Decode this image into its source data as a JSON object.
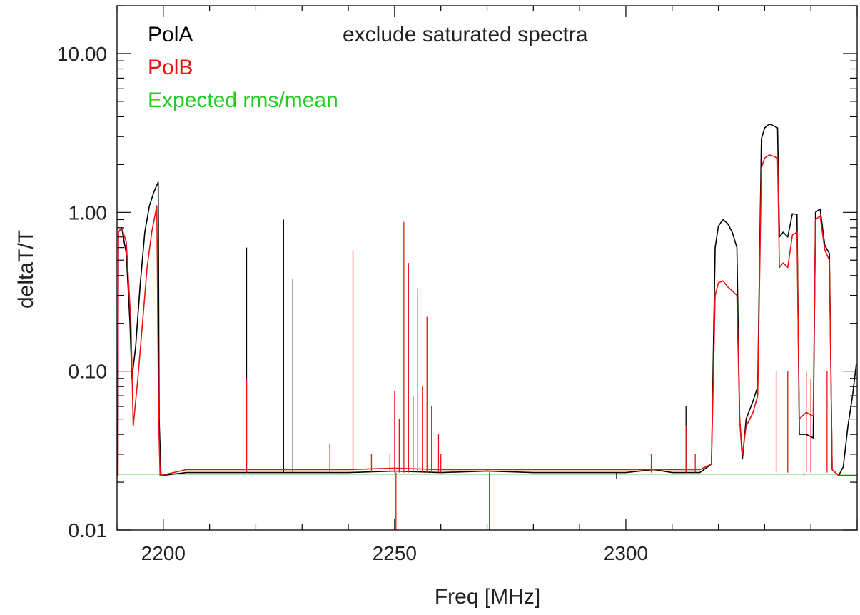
{
  "chart_data": {
    "type": "line",
    "title": "exclude saturated spectra",
    "xlabel": "Freq [MHz]",
    "ylabel": "deltaT/T",
    "xlim": [
      2190,
      2350
    ],
    "ylim": [
      0.01,
      20
    ],
    "yscale": "log",
    "grid": false,
    "legend_placement": "top-left",
    "x_ticks": [
      2200,
      2250,
      2300
    ],
    "x_tick_labels": [
      "2200",
      "2250",
      "2300"
    ],
    "y_ticks": [
      0.01,
      0.1,
      1,
      10
    ],
    "y_tick_labels": [
      "0.01",
      "0.10",
      "1.00",
      "10.00"
    ],
    "series": [
      {
        "name": "PolA",
        "color": "#000000",
        "points": [
          [
            2190.2,
            0.022
          ],
          [
            2190.3,
            0.75
          ],
          [
            2191,
            0.8
          ],
          [
            2192,
            0.55
          ],
          [
            2192.8,
            0.2
          ],
          [
            2193.2,
            0.09
          ],
          [
            2194,
            0.14
          ],
          [
            2195,
            0.35
          ],
          [
            2196,
            0.75
          ],
          [
            2197,
            1.1
          ],
          [
            2198,
            1.35
          ],
          [
            2198.9,
            1.55
          ],
          [
            2199.1,
            0.05
          ],
          [
            2199.5,
            0.022
          ],
          [
            2205,
            0.023
          ],
          [
            2210,
            0.023
          ],
          [
            2220,
            0.023
          ],
          [
            2230,
            0.023
          ],
          [
            2240,
            0.023
          ],
          [
            2250,
            0.0235
          ],
          [
            2260,
            0.023
          ],
          [
            2270,
            0.0235
          ],
          [
            2280,
            0.023
          ],
          [
            2290,
            0.023
          ],
          [
            2300,
            0.023
          ],
          [
            2306,
            0.024
          ],
          [
            2310,
            0.023
          ],
          [
            2316,
            0.023
          ],
          [
            2318.5,
            0.026
          ],
          [
            2319.3,
            0.6
          ],
          [
            2320,
            0.82
          ],
          [
            2321,
            0.9
          ],
          [
            2322,
            0.85
          ],
          [
            2323,
            0.75
          ],
          [
            2324,
            0.6
          ],
          [
            2324.6,
            0.05
          ],
          [
            2325.2,
            0.028
          ],
          [
            2326,
            0.05
          ],
          [
            2327.5,
            0.065
          ],
          [
            2328.5,
            0.08
          ],
          [
            2329.3,
            2.9
          ],
          [
            2330,
            3.4
          ],
          [
            2331,
            3.6
          ],
          [
            2332,
            3.5
          ],
          [
            2332.8,
            3.4
          ],
          [
            2333.2,
            0.7
          ],
          [
            2334,
            0.75
          ],
          [
            2335,
            0.7
          ],
          [
            2336,
            0.98
          ],
          [
            2337,
            0.97
          ],
          [
            2337.5,
            0.04
          ],
          [
            2339,
            0.04
          ],
          [
            2340.5,
            0.038
          ],
          [
            2341,
            1.0
          ],
          [
            2342,
            1.05
          ],
          [
            2343,
            0.62
          ],
          [
            2344,
            0.55
          ],
          [
            2344.6,
            0.024
          ],
          [
            2346,
            0.022
          ],
          [
            2347,
            0.025
          ],
          [
            2348,
            0.045
          ],
          [
            2349,
            0.07
          ],
          [
            2349.8,
            0.11
          ]
        ],
        "spikes": [
          [
            2218,
            0.6
          ],
          [
            2226,
            0.9
          ],
          [
            2228,
            0.38
          ],
          [
            2298,
            0.021
          ],
          [
            2313,
            0.06
          ]
        ]
      },
      {
        "name": "PolB",
        "color": "#ee1111",
        "points": [
          [
            2190.2,
            0.022
          ],
          [
            2190.3,
            0.75
          ],
          [
            2191,
            0.8
          ],
          [
            2192,
            0.65
          ],
          [
            2193,
            0.2
          ],
          [
            2193.5,
            0.045
          ],
          [
            2194.5,
            0.09
          ],
          [
            2195.5,
            0.2
          ],
          [
            2196.5,
            0.45
          ],
          [
            2197.5,
            0.75
          ],
          [
            2198.6,
            1.1
          ],
          [
            2199,
            0.05
          ],
          [
            2199.3,
            0.022
          ],
          [
            2205,
            0.024
          ],
          [
            2210,
            0.024
          ],
          [
            2220,
            0.024
          ],
          [
            2230,
            0.024
          ],
          [
            2240,
            0.024
          ],
          [
            2250,
            0.0245
          ],
          [
            2260,
            0.024
          ],
          [
            2270,
            0.024
          ],
          [
            2280,
            0.024
          ],
          [
            2290,
            0.024
          ],
          [
            2300,
            0.024
          ],
          [
            2306,
            0.024
          ],
          [
            2310,
            0.024
          ],
          [
            2316,
            0.024
          ],
          [
            2318.5,
            0.026
          ],
          [
            2319.3,
            0.3
          ],
          [
            2320,
            0.36
          ],
          [
            2321,
            0.37
          ],
          [
            2322,
            0.34
          ],
          [
            2323,
            0.32
          ],
          [
            2324,
            0.3
          ],
          [
            2324.6,
            0.05
          ],
          [
            2325.2,
            0.03
          ],
          [
            2326,
            0.045
          ],
          [
            2327.5,
            0.055
          ],
          [
            2328.5,
            0.07
          ],
          [
            2329.3,
            1.9
          ],
          [
            2330,
            2.2
          ],
          [
            2331,
            2.3
          ],
          [
            2332,
            2.25
          ],
          [
            2332.8,
            2.2
          ],
          [
            2333.2,
            0.45
          ],
          [
            2334,
            0.48
          ],
          [
            2335,
            0.45
          ],
          [
            2336,
            0.72
          ],
          [
            2337,
            0.75
          ],
          [
            2337.5,
            0.05
          ],
          [
            2339,
            0.055
          ],
          [
            2340.5,
            0.052
          ],
          [
            2341,
            0.9
          ],
          [
            2342,
            0.95
          ],
          [
            2343,
            0.58
          ],
          [
            2344,
            0.5
          ],
          [
            2344.6,
            0.024
          ],
          [
            2346,
            0.022
          ],
          [
            2350,
            0.022
          ]
        ],
        "spikes": [
          [
            2218,
            0.09
          ],
          [
            2236,
            0.035
          ],
          [
            2241,
            0.57
          ],
          [
            2245,
            0.03
          ],
          [
            2249,
            0.03
          ],
          [
            2250,
            0.075
          ],
          [
            2251,
            0.05
          ],
          [
            2252,
            0.87
          ],
          [
            2253,
            0.48
          ],
          [
            2254,
            0.07
          ],
          [
            2255,
            0.33
          ],
          [
            2256,
            0.08
          ],
          [
            2257,
            0.22
          ],
          [
            2258,
            0.06
          ],
          [
            2259.5,
            0.04
          ],
          [
            2260,
            0.03
          ],
          [
            2250.3,
            0.009
          ],
          [
            2270.5,
            0.009
          ],
          [
            2305.5,
            0.03
          ],
          [
            2313,
            0.045
          ],
          [
            2315,
            0.03
          ],
          [
            2332.5,
            0.1
          ],
          [
            2335,
            0.1
          ],
          [
            2339,
            0.1
          ],
          [
            2340,
            0.09
          ],
          [
            2343.5,
            0.1
          ],
          [
            2338.5,
            0.022
          ]
        ]
      },
      {
        "name": "Expected rms/mean",
        "color": "#22cc22",
        "points": [
          [
            2190,
            0.0225
          ],
          [
            2350,
            0.0225
          ]
        ]
      }
    ]
  }
}
